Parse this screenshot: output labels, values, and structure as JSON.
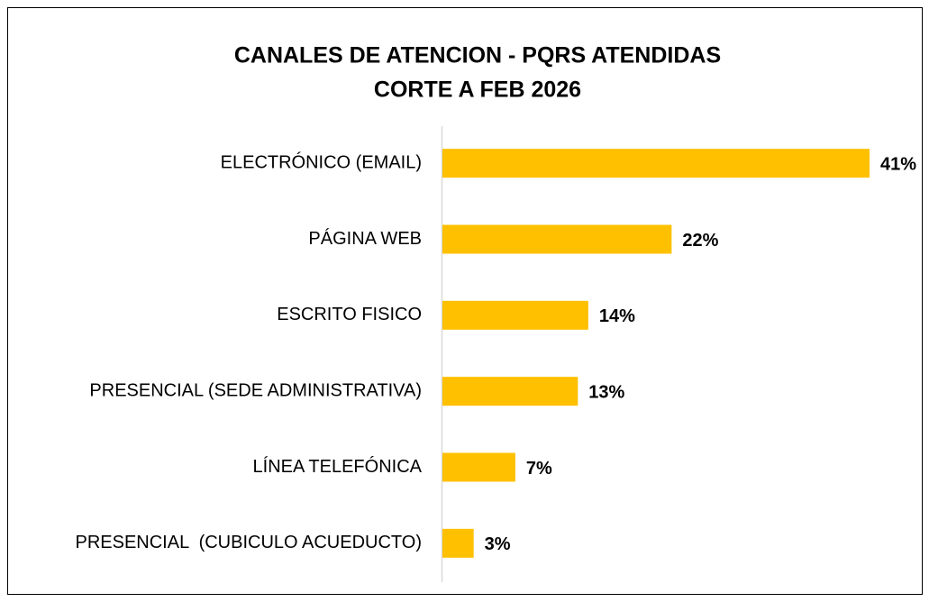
{
  "chart_data": {
    "type": "bar",
    "orientation": "horizontal",
    "title": "CANALES DE ATENCION - PQRS ATENDIDAS",
    "subtitle": "CORTE A FEB 2026",
    "categories": [
      "ELECTRÓNICO (EMAIL)",
      "PÁGINA WEB",
      "ESCRITO FISICO",
      "PRESENCIAL (SEDE ADMINISTRATIVA)",
      "LÍNEA TELEFÓNICA",
      "PRESENCIAL  (CUBICULO ACUEDUCTO)"
    ],
    "values": [
      41,
      22,
      14,
      13,
      7,
      3
    ],
    "value_labels": [
      "41%",
      "22%",
      "14%",
      "13%",
      "7%",
      "3%"
    ],
    "color": "#FFC000"
  }
}
